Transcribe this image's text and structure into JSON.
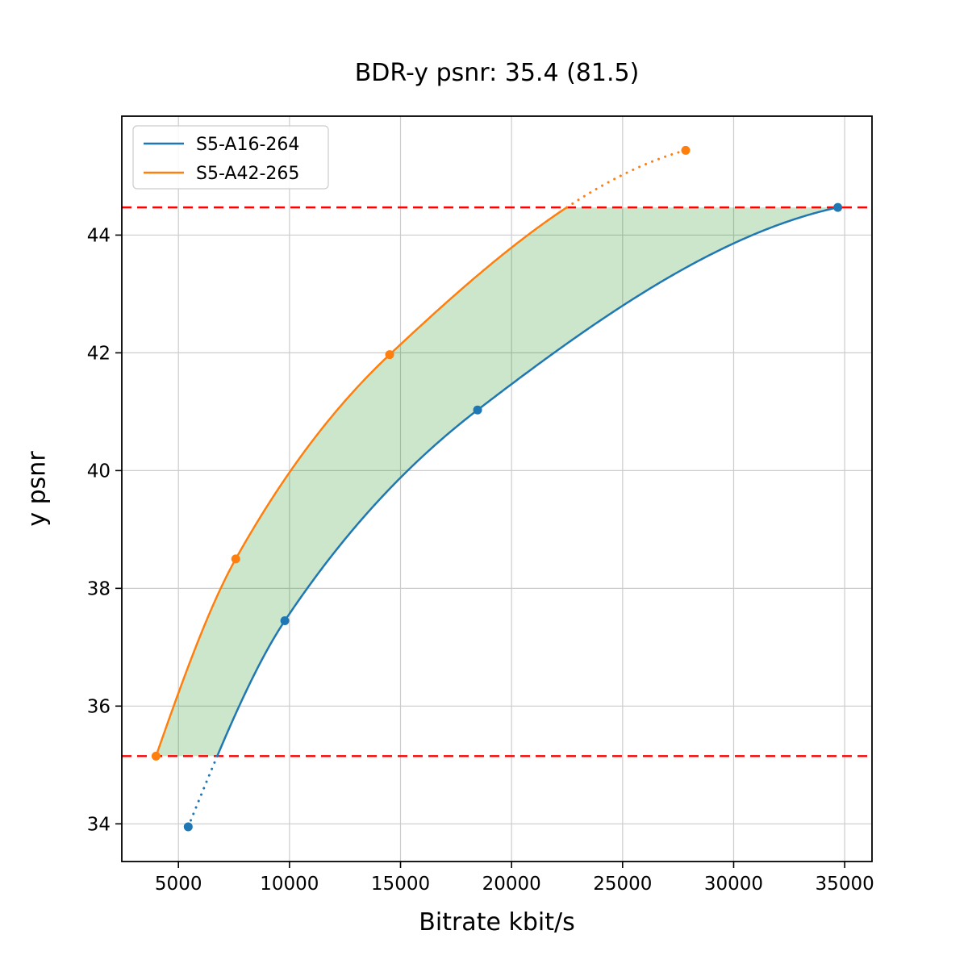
{
  "chart_data": {
    "type": "line",
    "title": "BDR-y psnr: 35.4 (81.5)",
    "xlabel": "Bitrate kbit/s",
    "ylabel": "y psnr",
    "xlim": [
      2450,
      36230
    ],
    "ylim": [
      33.36,
      46.02
    ],
    "xticks": [
      5000,
      10000,
      15000,
      20000,
      25000,
      30000,
      35000
    ],
    "yticks": [
      34,
      36,
      38,
      40,
      42,
      44
    ],
    "grid": true,
    "legend_position": "upper-left",
    "series": [
      {
        "name": "S5-A16-264",
        "color": "#1f77b4",
        "x": [
          5440,
          9790,
          18470,
          34690
        ],
        "y": [
          33.95,
          37.45,
          41.03,
          44.47
        ]
      },
      {
        "name": "S5-A42-265",
        "color": "#ff7f0e",
        "x": [
          3990,
          7580,
          14510,
          27840
        ],
        "y": [
          35.15,
          38.5,
          41.97,
          45.44
        ]
      }
    ],
    "hlines": {
      "color": "#ff0000",
      "style": "dashed",
      "values": [
        35.15,
        44.47
      ]
    },
    "fill_between": {
      "color": "rgba(0,128,0,0.2)",
      "lower_bound": 35.15,
      "upper_bound": 44.47
    }
  }
}
